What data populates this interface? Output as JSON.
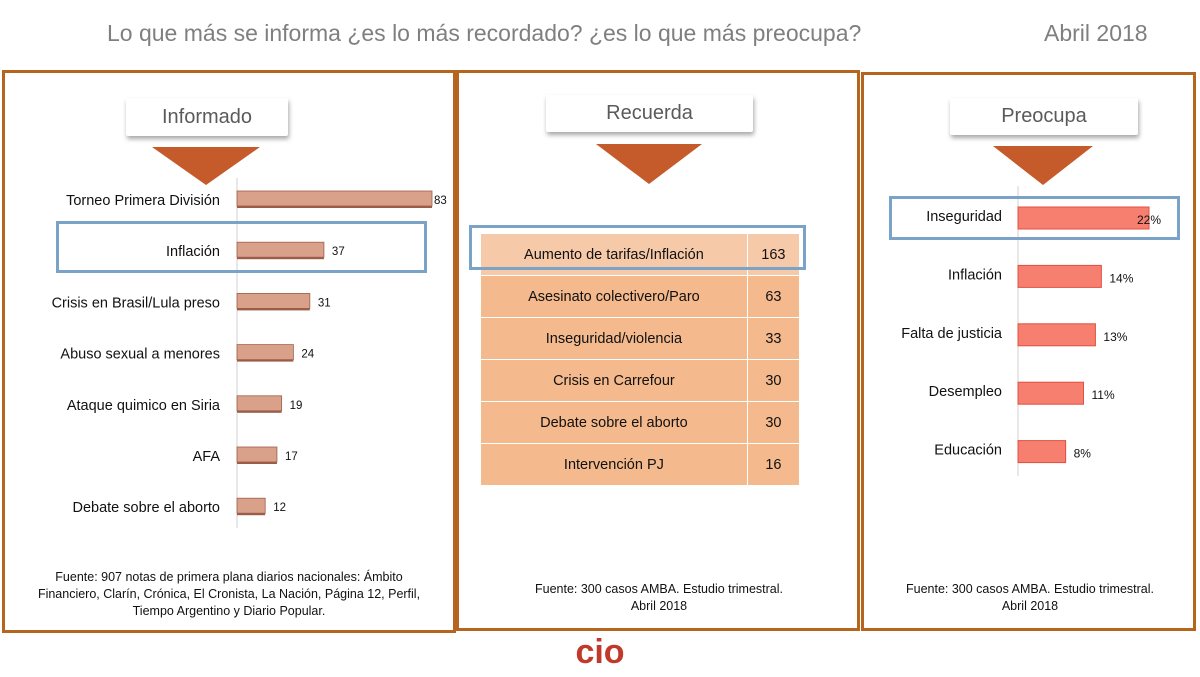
{
  "header": {
    "title": "Lo que más se informa ¿es lo más recordado? ¿es lo que más preocupa?",
    "date": "Abril 2018"
  },
  "panels": {
    "informado": {
      "label": "Informado",
      "source": [
        "Fuente: 907 notas de primera plana diarios nacionales: Ámbito",
        "Financiero, Clarín, Crónica, El Cronista, La Nación, Página 12, Perfil,",
        "Tiempo Argentino y Diario Popular."
      ]
    },
    "recuerda": {
      "label": "Recuerda",
      "source": [
        "Fuente: 300 casos AMBA. Estudio trimestral.",
        "Abril 2018"
      ]
    },
    "preocupa": {
      "label": "Preocupa",
      "source": [
        "Fuente: 300 casos AMBA. Estudio trimestral.",
        "Abril 2018"
      ]
    }
  },
  "colors": {
    "border": "#b5651d",
    "arrow": "#c55a2a",
    "highlight": "#7ba3c8",
    "bar_informado": "#d9a08a",
    "bar_preocupa": "#f77f70",
    "table_a": "#f6c9a8",
    "table_b": "#f4b98c"
  },
  "logo": {
    "text": "cio",
    "color": "#c0392b"
  },
  "chart_data": [
    {
      "type": "bar",
      "orientation": "horizontal",
      "categories": [
        "Torneo Primera División",
        "Inflación",
        "Crisis en Brasil/Lula preso",
        "Abuso sexual a menores",
        "Ataque quimico en Siria",
        "AFA",
        "Debate sobre el aborto"
      ],
      "values": [
        83,
        37,
        31,
        24,
        19,
        17,
        12
      ],
      "labels": [
        "83",
        "37",
        "31",
        "24",
        "19",
        "17",
        "12"
      ],
      "highlight": "Inflación"
    },
    {
      "type": "table",
      "rows": [
        {
          "name": "Aumento de tarifas/Inflación",
          "value": "163"
        },
        {
          "name": "Asesinato colectivero/Paro",
          "value": "63"
        },
        {
          "name": "Inseguridad/violencia",
          "value": "33"
        },
        {
          "name": "Crisis en Carrefour",
          "value": "30"
        },
        {
          "name": "Debate sobre el aborto",
          "value": "30"
        },
        {
          "name": "Intervención PJ",
          "value": "16"
        }
      ],
      "highlight": "Aumento de tarifas/Inflación"
    },
    {
      "type": "bar",
      "orientation": "horizontal",
      "categories": [
        "Inseguridad",
        "Inflación",
        "Falta de justicia",
        "Desempleo",
        "Educación"
      ],
      "values": [
        22,
        14,
        13,
        11,
        8
      ],
      "labels": [
        "22%",
        "14%",
        "13%",
        "11%",
        "8%"
      ],
      "highlight": "Inseguridad"
    }
  ]
}
